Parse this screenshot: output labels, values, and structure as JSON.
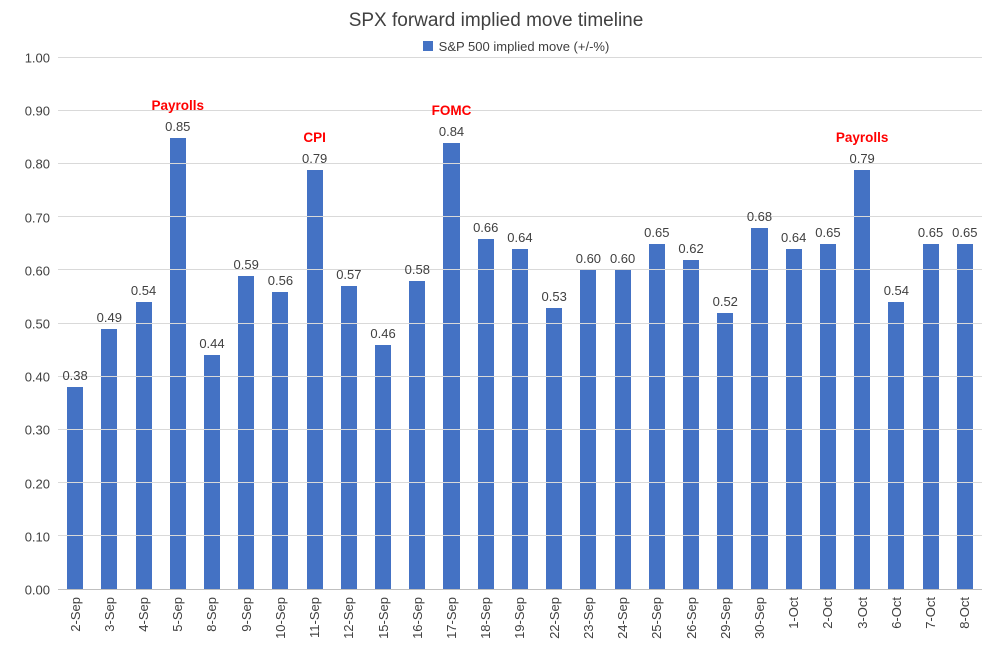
{
  "chart_data": {
    "type": "bar",
    "title": "SPX forward implied move timeline",
    "legend_label": "S&P 500 implied move (+/-%)",
    "categories": [
      "2-Sep",
      "3-Sep",
      "4-Sep",
      "5-Sep",
      "8-Sep",
      "9-Sep",
      "10-Sep",
      "11-Sep",
      "12-Sep",
      "15-Sep",
      "16-Sep",
      "17-Sep",
      "18-Sep",
      "19-Sep",
      "22-Sep",
      "23-Sep",
      "24-Sep",
      "25-Sep",
      "26-Sep",
      "29-Sep",
      "30-Sep",
      "1-Oct",
      "2-Oct",
      "3-Oct",
      "6-Oct",
      "7-Oct",
      "8-Oct"
    ],
    "values": [
      0.38,
      0.49,
      0.54,
      0.85,
      0.44,
      0.59,
      0.56,
      0.79,
      0.57,
      0.46,
      0.58,
      0.84,
      0.66,
      0.64,
      0.53,
      0.6,
      0.6,
      0.65,
      0.62,
      0.52,
      0.68,
      0.64,
      0.65,
      0.79,
      0.54,
      0.65,
      0.65
    ],
    "annotations": [
      {
        "index": 3,
        "label": "Payrolls"
      },
      {
        "index": 7,
        "label": "CPI"
      },
      {
        "index": 11,
        "label": "FOMC"
      },
      {
        "index": 23,
        "label": "Payrolls"
      }
    ],
    "ylim": [
      0,
      1.0
    ],
    "ytick_step": 0.1,
    "ytick_labels": [
      "0.00",
      "0.10",
      "0.20",
      "0.30",
      "0.40",
      "0.50",
      "0.60",
      "0.70",
      "0.80",
      "0.90",
      "1.00"
    ],
    "value_decimals": 2,
    "grid": true,
    "legend_position": "top",
    "colors": {
      "bar": "#4472C4",
      "annotation": "#FF0000",
      "gridline": "#D9D9D9",
      "axis_text": "#404040"
    }
  }
}
